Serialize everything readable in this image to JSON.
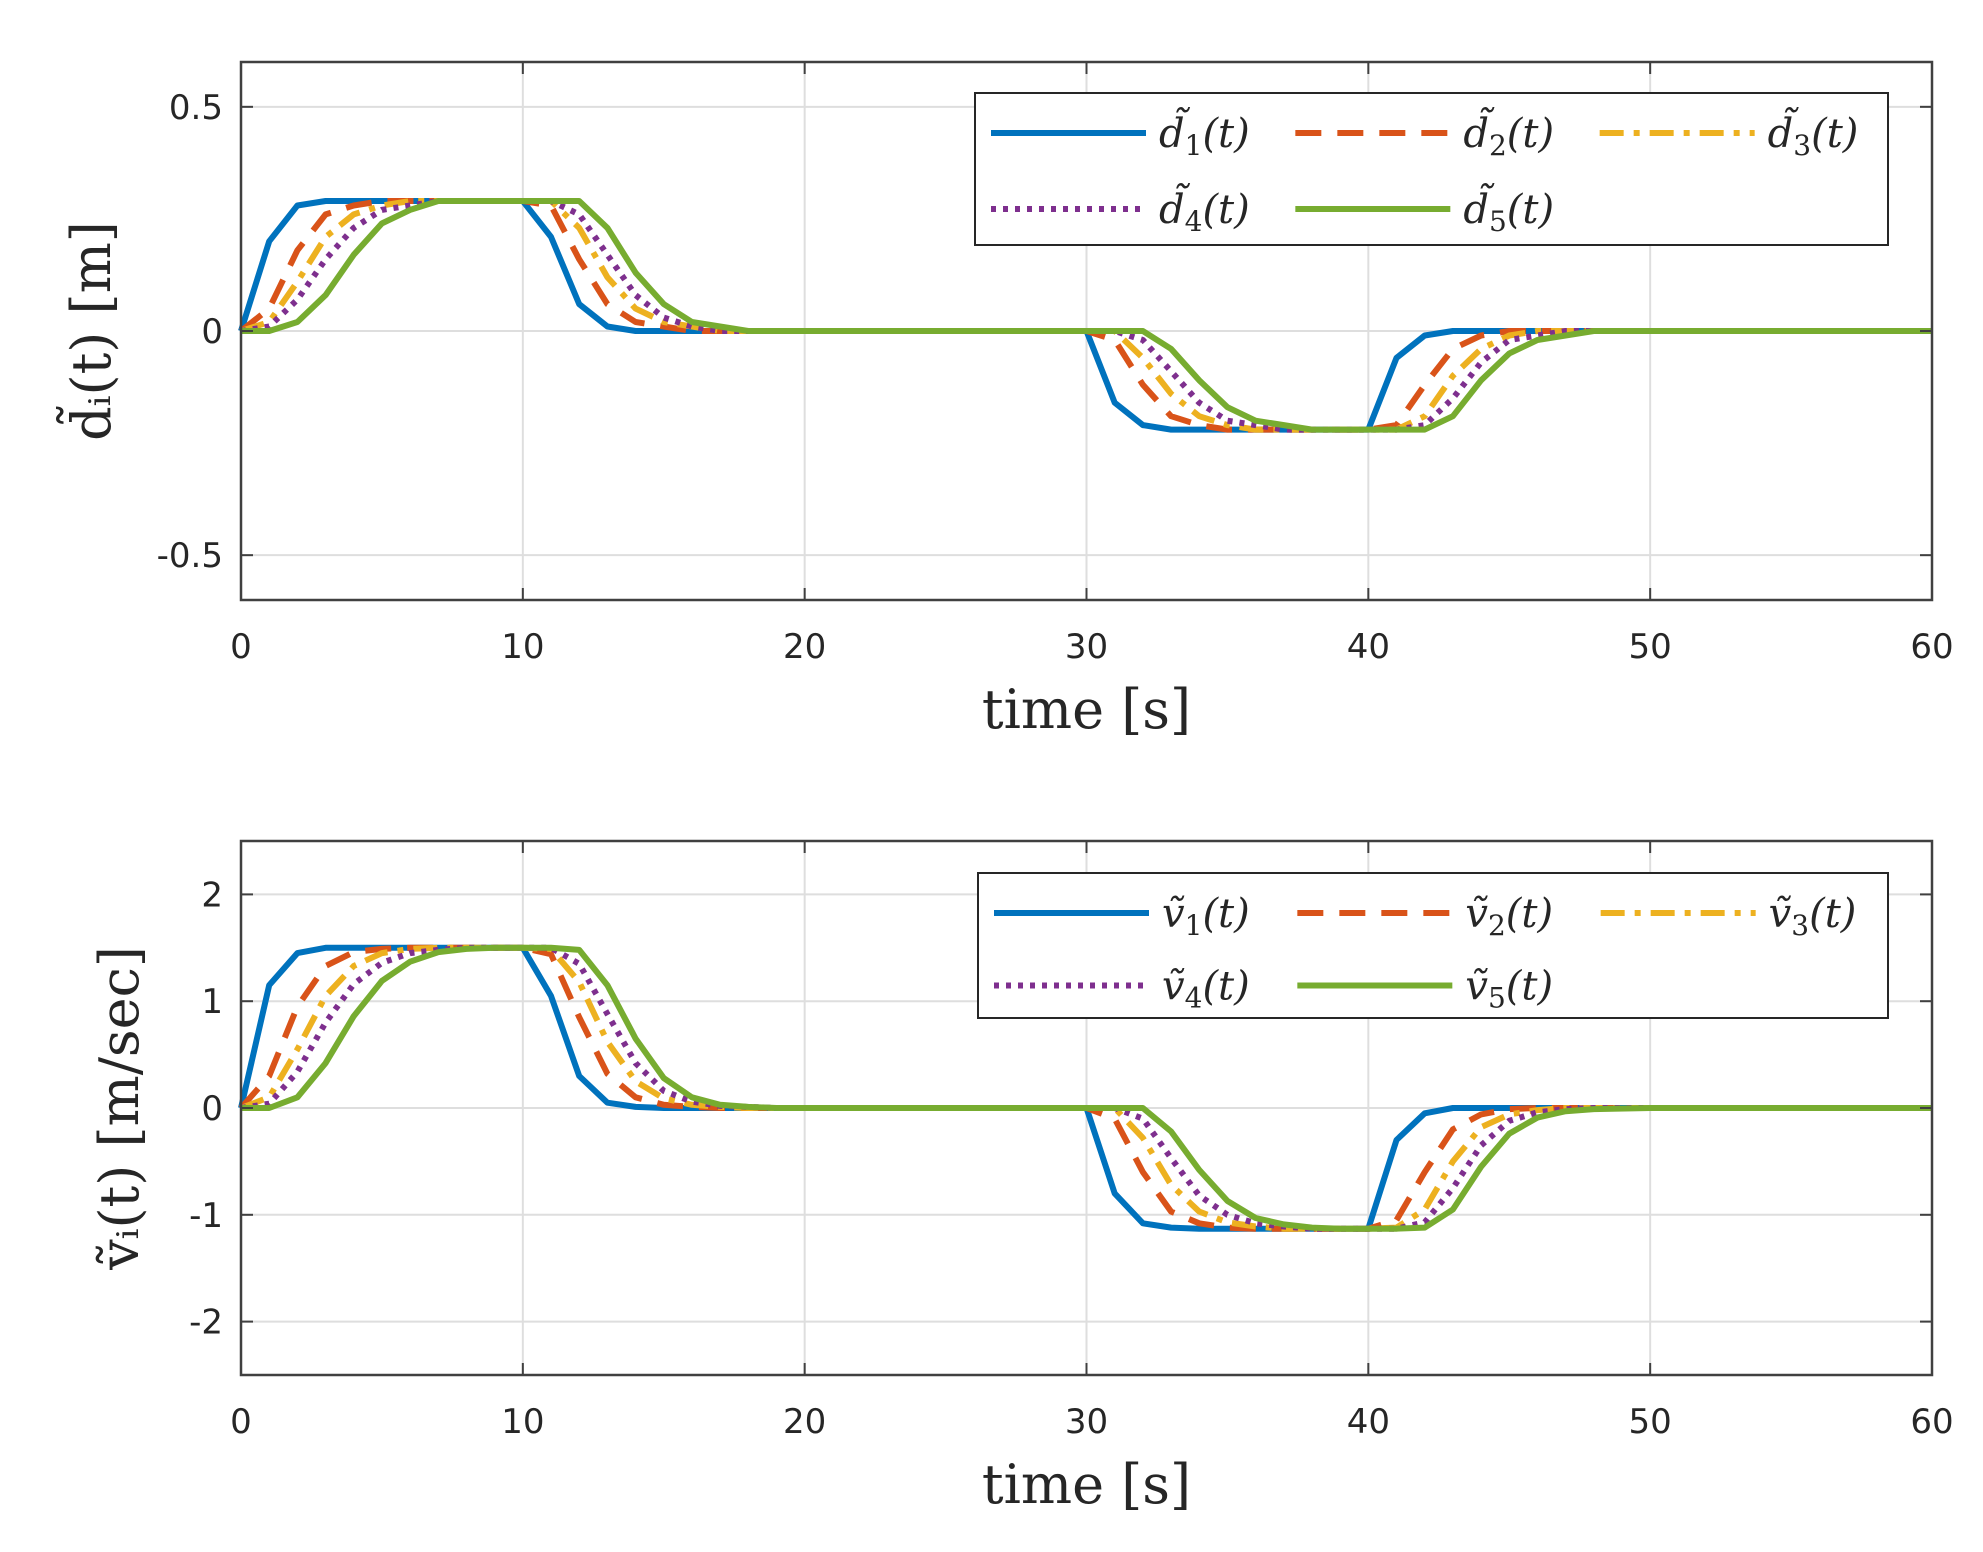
{
  "chart_data": [
    {
      "type": "line",
      "xlabel": "time [s]",
      "ylabel": "d̃ᵢ(t) [m]",
      "xlim": [
        0,
        60
      ],
      "ylim": [
        -0.6,
        0.6
      ],
      "xticks": [
        0,
        10,
        20,
        30,
        40,
        50,
        60
      ],
      "xtick_labels": [
        "0",
        "10",
        "20",
        "30",
        "40",
        "50",
        "60"
      ],
      "yticks": [
        0.5,
        0,
        -0.5
      ],
      "ytick_labels": [
        "0.5",
        "0",
        "-0.5"
      ],
      "grid": true,
      "legend_position": "top-right",
      "x": [
        0,
        1,
        2,
        3,
        4,
        5,
        6,
        7,
        8,
        9,
        10,
        11,
        12,
        13,
        14,
        15,
        16,
        17,
        18,
        19,
        20,
        25,
        30,
        31,
        32,
        33,
        34,
        35,
        36,
        37,
        38,
        39,
        40,
        41,
        42,
        43,
        44,
        45,
        46,
        47,
        48,
        50,
        55,
        60
      ],
      "series": [
        {
          "name": "d̃",
          "sub": "1",
          "color": "#0072BD",
          "dash": "solid",
          "values": [
            0,
            0.2,
            0.28,
            0.29,
            0.29,
            0.29,
            0.29,
            0.29,
            0.29,
            0.29,
            0.29,
            0.21,
            0.06,
            0.01,
            0,
            0,
            0,
            0,
            0,
            0,
            0,
            0,
            0,
            -0.16,
            -0.21,
            -0.22,
            -0.22,
            -0.22,
            -0.22,
            -0.22,
            -0.22,
            -0.22,
            -0.22,
            -0.06,
            -0.01,
            0,
            0,
            0,
            0,
            0,
            0,
            0,
            0,
            0
          ]
        },
        {
          "name": "d̃",
          "sub": "2",
          "color": "#D95319",
          "dash": "dashed",
          "values": [
            0,
            0.05,
            0.18,
            0.26,
            0.28,
            0.29,
            0.29,
            0.29,
            0.29,
            0.29,
            0.29,
            0.28,
            0.16,
            0.06,
            0.02,
            0.01,
            0,
            0,
            0,
            0,
            0,
            0,
            0,
            -0.02,
            -0.12,
            -0.19,
            -0.21,
            -0.22,
            -0.22,
            -0.22,
            -0.22,
            -0.22,
            -0.22,
            -0.21,
            -0.12,
            -0.04,
            -0.01,
            0,
            0,
            0,
            0,
            0,
            0,
            0
          ]
        },
        {
          "name": "d̃",
          "sub": "3",
          "color": "#EDB120",
          "dash": "dashdot",
          "values": [
            0,
            0.02,
            0.11,
            0.21,
            0.26,
            0.28,
            0.29,
            0.29,
            0.29,
            0.29,
            0.29,
            0.29,
            0.23,
            0.12,
            0.05,
            0.02,
            0.01,
            0,
            0,
            0,
            0,
            0,
            0,
            0,
            -0.06,
            -0.14,
            -0.19,
            -0.21,
            -0.22,
            -0.22,
            -0.22,
            -0.22,
            -0.22,
            -0.22,
            -0.19,
            -0.1,
            -0.04,
            -0.01,
            0,
            0,
            0,
            0,
            0,
            0
          ]
        },
        {
          "name": "d̃",
          "sub": "4",
          "color": "#7E2F8E",
          "dash": "dotted",
          "values": [
            0,
            0.01,
            0.07,
            0.16,
            0.23,
            0.27,
            0.28,
            0.29,
            0.29,
            0.29,
            0.29,
            0.29,
            0.26,
            0.17,
            0.08,
            0.03,
            0.01,
            0,
            0,
            0,
            0,
            0,
            0,
            0,
            -0.02,
            -0.09,
            -0.16,
            -0.2,
            -0.21,
            -0.22,
            -0.22,
            -0.22,
            -0.22,
            -0.22,
            -0.21,
            -0.15,
            -0.07,
            -0.02,
            -0.01,
            0,
            0,
            0,
            0,
            0
          ]
        },
        {
          "name": "d̃",
          "sub": "5",
          "color": "#77AC30",
          "dash": "solid",
          "values": [
            0,
            0,
            0.02,
            0.08,
            0.17,
            0.24,
            0.27,
            0.29,
            0.29,
            0.29,
            0.29,
            0.29,
            0.29,
            0.23,
            0.13,
            0.06,
            0.02,
            0.01,
            0,
            0,
            0,
            0,
            0,
            0,
            0,
            -0.04,
            -0.11,
            -0.17,
            -0.2,
            -0.21,
            -0.22,
            -0.22,
            -0.22,
            -0.22,
            -0.22,
            -0.19,
            -0.11,
            -0.05,
            -0.02,
            -0.01,
            0,
            0,
            0,
            0
          ]
        }
      ]
    },
    {
      "type": "line",
      "xlabel": "time [s]",
      "ylabel": "ṽᵢ(t) [m/sec]",
      "xlim": [
        0,
        60
      ],
      "ylim": [
        -2.5,
        2.5
      ],
      "xticks": [
        0,
        10,
        20,
        30,
        40,
        50,
        60
      ],
      "xtick_labels": [
        "0",
        "10",
        "20",
        "30",
        "40",
        "50",
        "60"
      ],
      "yticks": [
        2,
        1,
        0,
        -1,
        -2
      ],
      "ytick_labels": [
        "2",
        "1",
        "0",
        "-1",
        "-2"
      ],
      "grid": true,
      "legend_position": "top-right",
      "x": [
        0,
        1,
        2,
        3,
        4,
        5,
        6,
        7,
        8,
        9,
        10,
        11,
        12,
        13,
        14,
        15,
        16,
        17,
        18,
        19,
        20,
        25,
        30,
        31,
        32,
        33,
        34,
        35,
        36,
        37,
        38,
        39,
        40,
        41,
        42,
        43,
        44,
        45,
        46,
        47,
        48,
        50,
        55,
        60
      ],
      "series": [
        {
          "name": "ṽ",
          "sub": "1",
          "color": "#0072BD",
          "dash": "solid",
          "values": [
            0,
            1.15,
            1.45,
            1.5,
            1.5,
            1.5,
            1.5,
            1.5,
            1.5,
            1.5,
            1.5,
            1.05,
            0.3,
            0.05,
            0.01,
            0,
            0,
            0,
            0,
            0,
            0,
            0,
            0,
            -0.8,
            -1.08,
            -1.12,
            -1.13,
            -1.13,
            -1.13,
            -1.13,
            -1.13,
            -1.13,
            -1.13,
            -0.3,
            -0.05,
            0,
            0,
            0,
            0,
            0,
            0,
            0,
            0,
            0
          ]
        },
        {
          "name": "ṽ",
          "sub": "2",
          "color": "#D95319",
          "dash": "dashed",
          "values": [
            0,
            0.3,
            0.95,
            1.33,
            1.46,
            1.49,
            1.5,
            1.5,
            1.5,
            1.5,
            1.5,
            1.44,
            0.85,
            0.32,
            0.1,
            0.03,
            0.01,
            0,
            0,
            0,
            0,
            0,
            0,
            -0.1,
            -0.6,
            -0.97,
            -1.08,
            -1.12,
            -1.13,
            -1.13,
            -1.13,
            -1.13,
            -1.13,
            -1.05,
            -0.6,
            -0.2,
            -0.06,
            -0.01,
            0,
            0,
            0,
            0,
            0,
            0
          ]
        },
        {
          "name": "ṽ",
          "sub": "3",
          "color": "#EDB120",
          "dash": "dashdot",
          "values": [
            0,
            0.1,
            0.55,
            1.05,
            1.33,
            1.45,
            1.49,
            1.5,
            1.5,
            1.5,
            1.5,
            1.49,
            1.18,
            0.62,
            0.25,
            0.09,
            0.03,
            0.01,
            0,
            0,
            0,
            0,
            0,
            0,
            -0.28,
            -0.72,
            -0.97,
            -1.07,
            -1.11,
            -1.13,
            -1.13,
            -1.13,
            -1.13,
            -1.12,
            -0.95,
            -0.5,
            -0.18,
            -0.06,
            -0.02,
            0,
            0,
            0,
            0,
            0
          ]
        },
        {
          "name": "ṽ",
          "sub": "4",
          "color": "#7E2F8E",
          "dash": "dotted",
          "values": [
            0,
            0.04,
            0.34,
            0.8,
            1.16,
            1.36,
            1.45,
            1.48,
            1.5,
            1.5,
            1.5,
            1.5,
            1.35,
            0.88,
            0.42,
            0.16,
            0.06,
            0.02,
            0.01,
            0,
            0,
            0,
            0,
            0,
            -0.1,
            -0.47,
            -0.82,
            -1.0,
            -1.08,
            -1.11,
            -1.13,
            -1.13,
            -1.13,
            -1.13,
            -1.07,
            -0.75,
            -0.35,
            -0.12,
            -0.04,
            -0.01,
            0,
            0,
            0,
            0
          ]
        },
        {
          "name": "ṽ",
          "sub": "5",
          "color": "#77AC30",
          "dash": "solid",
          "values": [
            0,
            0,
            0.1,
            0.42,
            0.86,
            1.19,
            1.37,
            1.46,
            1.49,
            1.5,
            1.5,
            1.5,
            1.48,
            1.15,
            0.65,
            0.28,
            0.1,
            0.03,
            0.01,
            0,
            0,
            0,
            0,
            0,
            0,
            -0.22,
            -0.58,
            -0.87,
            -1.03,
            -1.09,
            -1.12,
            -1.13,
            -1.13,
            -1.13,
            -1.12,
            -0.95,
            -0.55,
            -0.24,
            -0.09,
            -0.03,
            -0.01,
            0,
            0,
            0
          ]
        }
      ]
    }
  ]
}
